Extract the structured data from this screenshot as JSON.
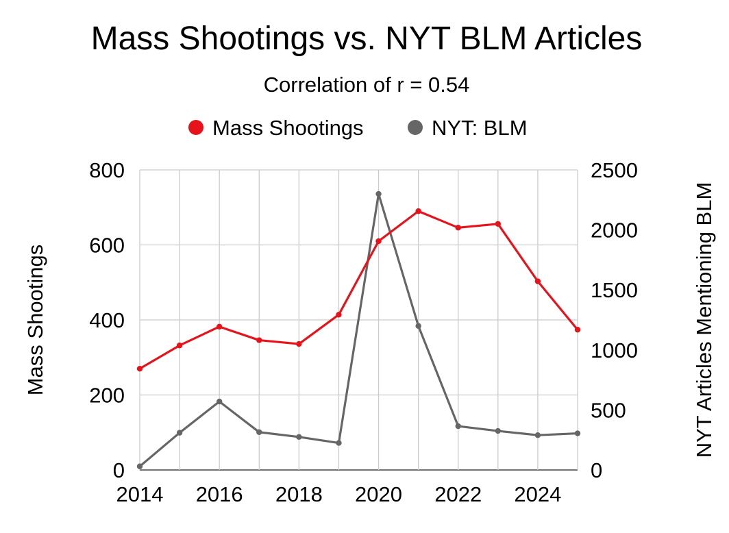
{
  "chart_data": {
    "type": "line",
    "title": "Mass Shootings vs. NYT BLM Articles",
    "subtitle": "Correlation of r = 0.54",
    "x": [
      2014,
      2015,
      2016,
      2017,
      2018,
      2019,
      2020,
      2021,
      2022,
      2023,
      2024,
      2025
    ],
    "xlim": [
      2014,
      2025
    ],
    "xticks": [
      "2014",
      "2016",
      "2018",
      "2020",
      "2022",
      "2024"
    ],
    "ylabel": "Mass Shootings",
    "ylim": [
      0,
      800
    ],
    "yticks": [
      "0",
      "200",
      "400",
      "600",
      "800"
    ],
    "y2label": "NYT Articles Mentioning BLM",
    "y2lim": [
      0,
      2500
    ],
    "y2ticks": [
      "0",
      "500",
      "1000",
      "1500",
      "2000",
      "2500"
    ],
    "grid": true,
    "legend_position": "top",
    "series": [
      {
        "name": "Mass Shootings",
        "axis": "left",
        "color": "#e8121b",
        "values": [
          270,
          332,
          382,
          346,
          336,
          414,
          610,
          690,
          646,
          656,
          503,
          374
        ]
      },
      {
        "name": "NYT: BLM",
        "axis": "right",
        "color": "#666666",
        "values": [
          30,
          310,
          570,
          315,
          275,
          225,
          2300,
          1200,
          365,
          325,
          290,
          305
        ]
      }
    ]
  }
}
